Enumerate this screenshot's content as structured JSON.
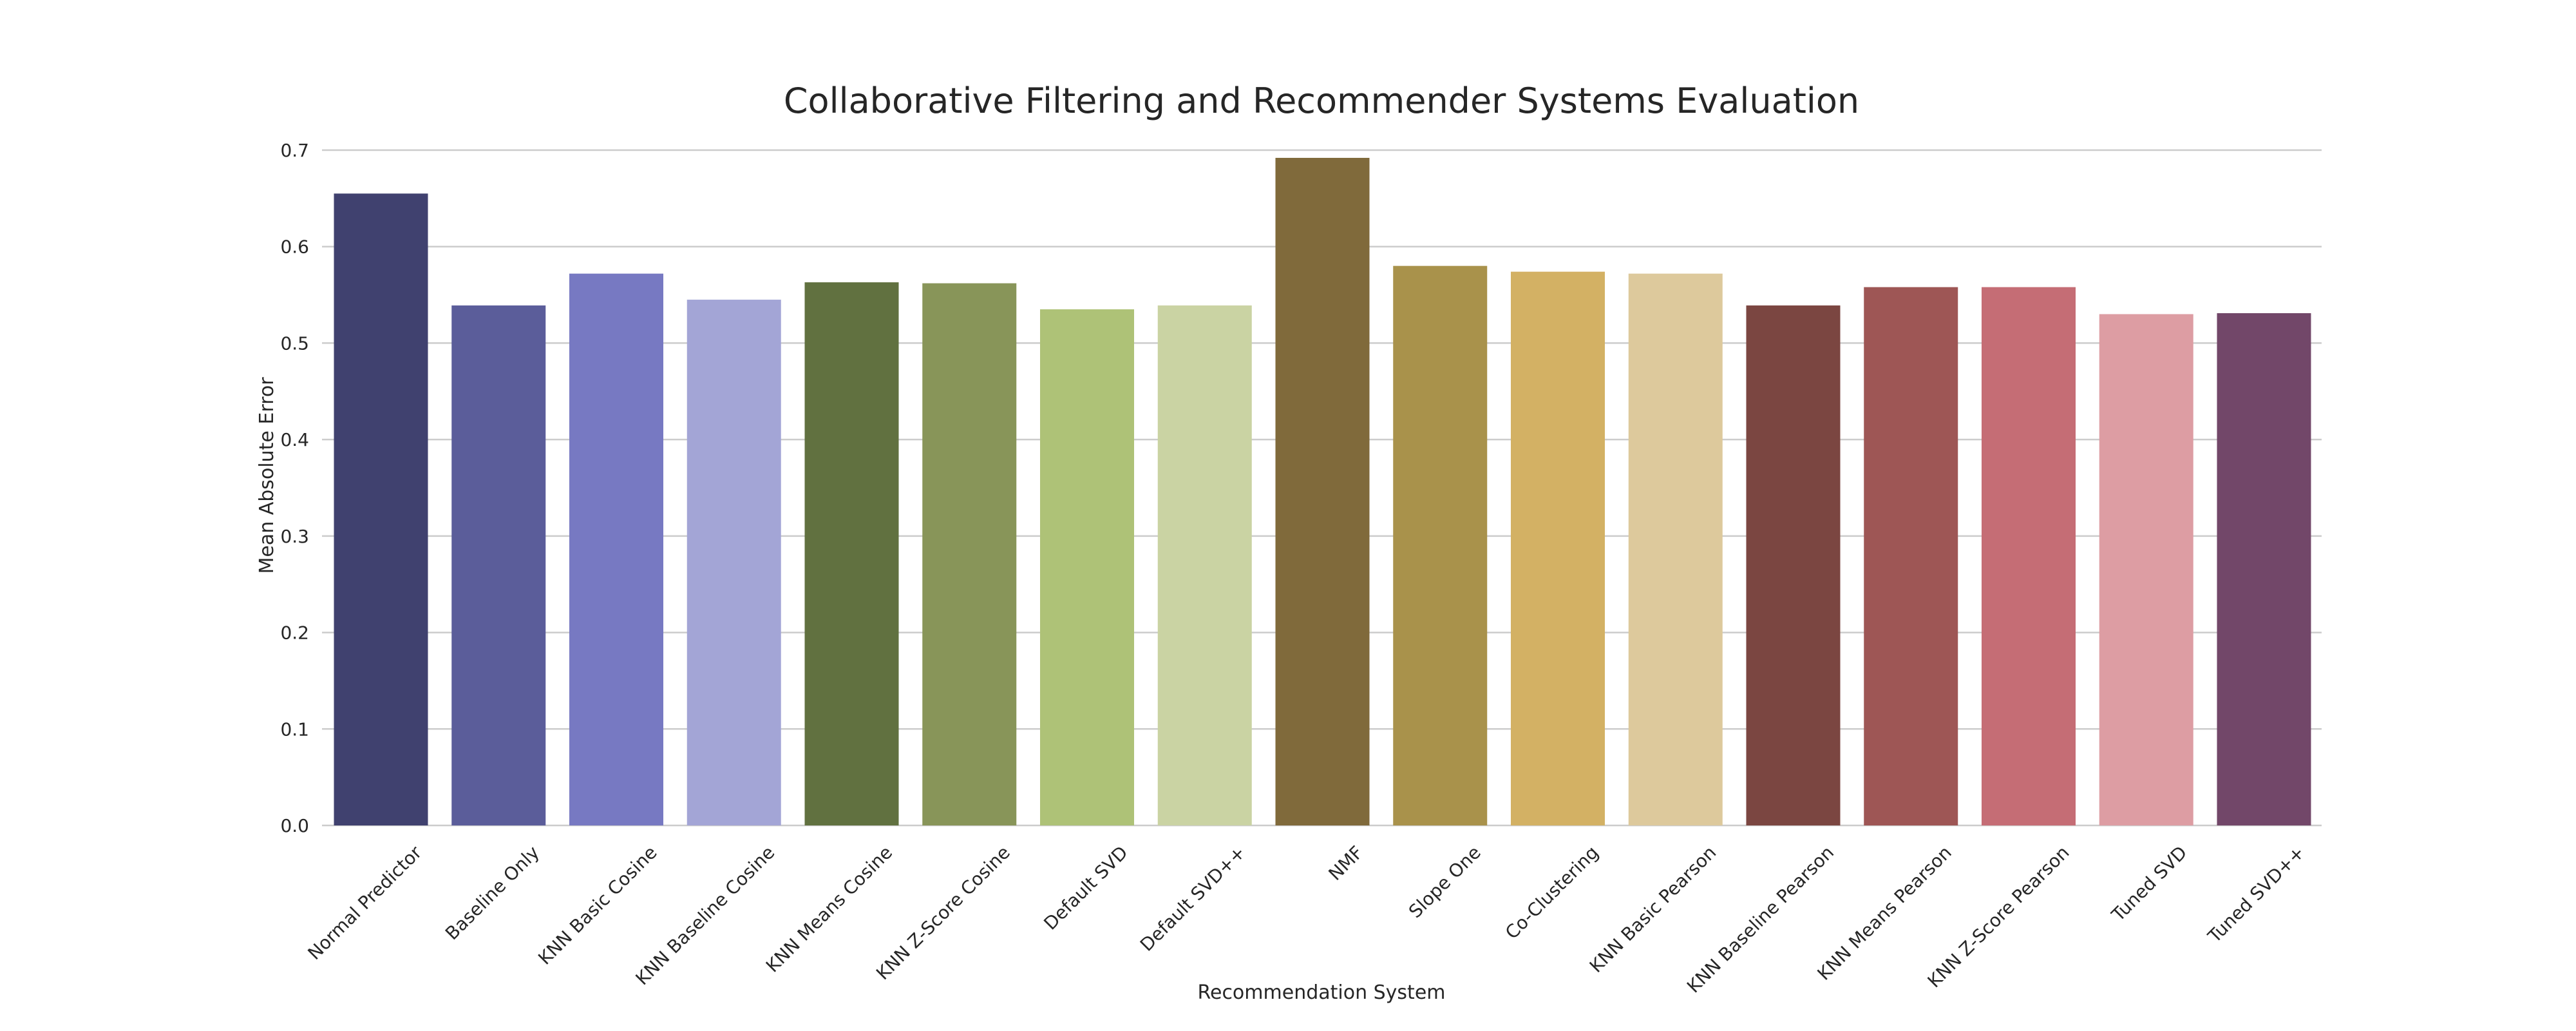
{
  "chart_data": {
    "type": "bar",
    "title": "Collaborative Filtering and Recommender Systems Evaluation",
    "xlabel": "Recommendation System",
    "ylabel": "Mean Absolute Error",
    "ylim": [
      0,
      0.7
    ],
    "yticks": [
      "0.0",
      "0.1",
      "0.2",
      "0.3",
      "0.4",
      "0.5",
      "0.6",
      "0.7"
    ],
    "grid": true,
    "categories": [
      "Normal Predictor",
      "Baseline Only",
      "KNN Basic Cosine",
      "KNN Baseline Cosine",
      "KNN Means Cosine",
      "KNN Z-Score Cosine",
      "Default SVD",
      "Default SVD++",
      "NMF",
      "Slope One",
      "Co-Clustering",
      "KNN Basic Pearson",
      "KNN Baseline Pearson",
      "KNN Means Pearson",
      "KNN Z-Score Pearson",
      "Tuned SVD",
      "Tuned SVD++"
    ],
    "values": [
      0.655,
      0.539,
      0.572,
      0.545,
      0.563,
      0.562,
      0.535,
      0.539,
      0.692,
      0.58,
      0.574,
      0.572,
      0.539,
      0.558,
      0.558,
      0.53,
      0.531
    ],
    "colors": [
      "#40416f",
      "#5b5d9a",
      "#7779c2",
      "#a3a5d6",
      "#617140",
      "#889559",
      "#aec277",
      "#cad3a3",
      "#806a3b",
      "#a9924b",
      "#d3b164",
      "#ddc99c",
      "#7b4641",
      "#9e5655",
      "#c56d75",
      "#dd9da3",
      "#724769"
    ]
  }
}
